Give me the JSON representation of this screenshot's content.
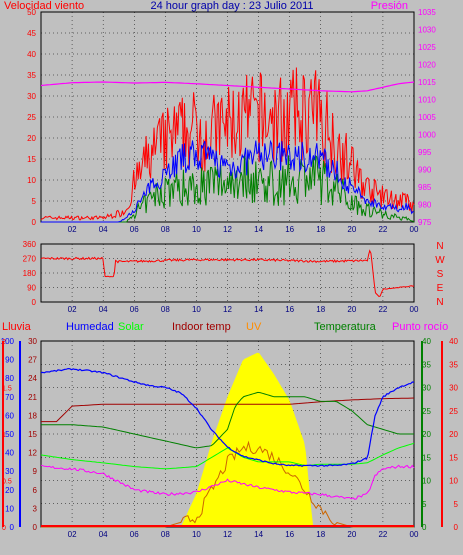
{
  "title": "24 hour graph day : 23 Julio 2011",
  "x_ticks": [
    "02",
    "04",
    "06",
    "08",
    "10",
    "12",
    "14",
    "16",
    "18",
    "20",
    "22",
    "00"
  ],
  "colors": {
    "background": "#c0c0c0",
    "wind": "#ff0000",
    "wind_avg": "#0000ff",
    "wind_gust": "#008000",
    "pressure": "#ff00ff",
    "direction": "#ff0000",
    "rain": "#ff0000",
    "humidity": "#0000ff",
    "solar": "#00ff00",
    "indoor_temp": "#a00000",
    "uv": "#ffff00",
    "temperature": "#008000",
    "dewpoint": "#ff00ff"
  },
  "chart_data": [
    {
      "type": "line",
      "name": "wind-pressure",
      "left_label": "Velocidad viento",
      "right_label": "Presión",
      "left_ticks": [
        "0",
        "5",
        "10",
        "15",
        "20",
        "25",
        "30",
        "35",
        "40",
        "45",
        "50"
      ],
      "right_ticks": [
        "975",
        "980",
        "985",
        "990",
        "995",
        "1000",
        "1005",
        "1010",
        "1015",
        "1020",
        "1025",
        "1030",
        "1035"
      ],
      "ylim_left": [
        0,
        50
      ],
      "ylim_right": [
        975,
        1035
      ],
      "xlim_hours": [
        0,
        24
      ],
      "grid": true,
      "series": [
        {
          "axis": "left",
          "x": [
            0,
            1,
            2,
            3,
            4,
            5,
            5.5,
            6,
            7,
            8,
            9,
            10,
            11,
            12,
            13,
            14,
            15,
            16,
            17,
            18,
            19,
            20,
            21,
            22,
            23,
            23.5,
            24
          ],
          "y": [
            1,
            1,
            1,
            1,
            1,
            2,
            3,
            9,
            16,
            19,
            21,
            22,
            21,
            23,
            24,
            25,
            24,
            25,
            26,
            25,
            19,
            13,
            8,
            6,
            5,
            5,
            3
          ]
        },
        {
          "axis": "left",
          "x": [
            0,
            1,
            2,
            3,
            4,
            5,
            5.5,
            6,
            7,
            8,
            9,
            10,
            11,
            12,
            13,
            14,
            15,
            16,
            17,
            18,
            19,
            20,
            21,
            22,
            23,
            23.5,
            24
          ],
          "y": [
            0,
            0,
            0,
            0,
            0,
            0,
            1,
            3,
            8,
            12,
            15,
            16,
            15,
            13,
            14,
            16,
            16,
            15,
            16,
            15,
            12,
            8,
            5,
            4,
            3,
            4,
            2
          ]
        },
        {
          "axis": "left",
          "x": [
            0,
            1,
            2,
            3,
            4,
            5,
            5.5,
            6,
            7,
            8,
            9,
            10,
            11,
            12,
            13,
            14,
            15,
            16,
            17,
            18,
            19,
            20,
            21,
            22,
            23,
            23.5,
            24
          ],
          "y": [
            0,
            0,
            0,
            0,
            0,
            0,
            0,
            2,
            5,
            8,
            8,
            9,
            9,
            10,
            11,
            10,
            9,
            10,
            11,
            10,
            8,
            5,
            3,
            2,
            1,
            1,
            0
          ]
        },
        {
          "axis": "right",
          "x": [
            0,
            2,
            4,
            6,
            8,
            10,
            12,
            14,
            16,
            18,
            20,
            21,
            22,
            23,
            24
          ],
          "y": [
            1014,
            1014.8,
            1015,
            1014.7,
            1014.9,
            1014.5,
            1014,
            1013.5,
            1013,
            1012.5,
            1012.2,
            1012.5,
            1013.5,
            1014.5,
            1015
          ]
        }
      ]
    },
    {
      "type": "line",
      "name": "wind-direction",
      "left_ticks": [
        "0",
        "90",
        "180",
        "270",
        "360"
      ],
      "right_labels": [
        "N",
        "W",
        "S",
        "E",
        "N"
      ],
      "ylim": [
        0,
        360
      ],
      "xlim_hours": [
        0,
        24
      ],
      "grid": true,
      "series": [
        {
          "x": [
            0,
            3,
            4,
            4.1,
            4.7,
            4.8,
            5,
            6,
            8,
            10,
            12,
            14,
            16,
            18,
            20,
            21,
            21.2,
            21.5,
            21.8,
            22,
            23,
            24
          ],
          "y": [
            270,
            270,
            270,
            158,
            158,
            255,
            250,
            252,
            258,
            262,
            262,
            262,
            257,
            252,
            255,
            258,
            330,
            60,
            30,
            80,
            90,
            100
          ]
        }
      ]
    },
    {
      "type": "line",
      "name": "humidity-temperature",
      "labels": [
        "Lluvia",
        "Humedad",
        "Solar",
        "Indoor temp",
        "UV",
        "Temperatura",
        "Punto rocío"
      ],
      "rain_ticks": [
        "0",
        "0.5",
        "1",
        "1.5",
        "2"
      ],
      "humidity_ticks": [
        "0",
        "10",
        "20",
        "30",
        "40",
        "50",
        "60",
        "70",
        "80",
        "90",
        "100"
      ],
      "indoor_ticks": [
        "0",
        "3",
        "6",
        "9",
        "12",
        "15",
        "18",
        "21",
        "24",
        "27",
        "30"
      ],
      "temp_ticks": [
        "0",
        "5",
        "10",
        "15",
        "20",
        "25",
        "30",
        "35",
        "40"
      ],
      "dew_ticks": [
        "0",
        "5",
        "10",
        "15",
        "20",
        "25",
        "30",
        "35",
        "40"
      ],
      "ylim_humidity": [
        0,
        100
      ],
      "ylim_temp": [
        0,
        40
      ],
      "xlim_hours": [
        0,
        24
      ],
      "grid": true,
      "series": [
        {
          "axis": "humidity",
          "x": [
            0,
            2,
            4,
            6,
            7,
            8,
            9,
            10,
            11,
            12,
            13,
            14,
            15,
            16,
            17,
            18,
            19,
            20,
            21,
            21.5,
            22,
            23,
            24
          ],
          "y": [
            83,
            85,
            83,
            78,
            76,
            75,
            72,
            64,
            52,
            43,
            38,
            36,
            34,
            33,
            33,
            33,
            33,
            34,
            37,
            60,
            70,
            75,
            78
          ]
        },
        {
          "axis": "solar",
          "x": [
            0,
            6,
            7,
            8,
            9,
            10,
            11,
            12,
            13,
            14,
            15,
            16,
            17,
            17.5,
            18,
            19,
            20,
            24
          ],
          "y": [
            0,
            0,
            0,
            0,
            0,
            180,
            460,
            700,
            900,
            940,
            820,
            680,
            440,
            0,
            0,
            0,
            0,
            0
          ]
        },
        {
          "axis": "indoor",
          "x": [
            0,
            1,
            2,
            4,
            6,
            8,
            10,
            12,
            14,
            16,
            18,
            20,
            22,
            24
          ],
          "y": [
            17,
            17,
            19.5,
            19.8,
            19.8,
            19.8,
            19.8,
            19.8,
            19.8,
            19.8,
            20.2,
            20.5,
            20.7,
            20.8
          ]
        },
        {
          "axis": "uv",
          "x": [
            0,
            8.5,
            9,
            10,
            11,
            12,
            13,
            14,
            15,
            16,
            17,
            17.5,
            24
          ],
          "y": [
            0,
            0,
            0.5,
            1.5,
            3.2,
            5,
            6,
            6.5,
            6.5,
            6,
            4.8,
            0,
            0
          ]
        },
        {
          "axis": "temp",
          "x": [
            0,
            2,
            4,
            6,
            8,
            10,
            11,
            12,
            12.5,
            13,
            14,
            15,
            16,
            17,
            18,
            19,
            20,
            21,
            22,
            23,
            24
          ],
          "y": [
            22,
            22,
            21.5,
            20,
            18.5,
            17,
            17.5,
            21,
            26,
            28,
            29,
            28,
            28,
            28,
            27,
            27,
            25,
            22,
            21,
            20,
            20
          ]
        },
        {
          "axis": "temp",
          "x": [
            0,
            2,
            4,
            6,
            8,
            10,
            12,
            13,
            14,
            16,
            17,
            18,
            20,
            21,
            22,
            23,
            24
          ],
          "y": [
            15.5,
            14.5,
            13.8,
            13,
            12.5,
            13,
            17,
            15,
            14,
            14,
            13.2,
            13.5,
            13.5,
            13.8,
            15.5,
            17,
            18
          ]
        },
        {
          "axis": "temp",
          "x": [
            0,
            2,
            4,
            6,
            8,
            10,
            12,
            14,
            16,
            18,
            20,
            21,
            21.5,
            22,
            23,
            24
          ],
          "y": [
            13,
            12.5,
            11.5,
            8,
            7,
            7.5,
            10,
            8.5,
            7.5,
            7,
            6,
            7,
            11,
            12.5,
            13,
            13
          ]
        },
        {
          "axis": "temp",
          "x": [
            0,
            8,
            10,
            11,
            12,
            13,
            14,
            15,
            16,
            17,
            18,
            19,
            20,
            24
          ],
          "y": [
            0,
            0,
            2,
            8,
            14,
            17,
            17,
            15,
            12,
            8,
            4,
            1,
            0,
            0
          ]
        }
      ]
    }
  ]
}
